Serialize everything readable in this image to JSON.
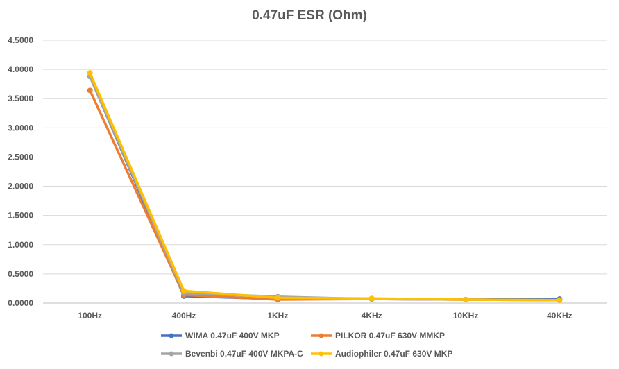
{
  "chart_data": {
    "type": "line",
    "title": "0.47uF ESR (Ohm)",
    "xlabel": "",
    "ylabel": "",
    "categories": [
      "100Hz",
      "400Hz",
      "1KHz",
      "4KHz",
      "10KHz",
      "40KHz"
    ],
    "ylim": [
      0,
      4.5
    ],
    "y_ticks": [
      "0.0000",
      "0.5000",
      "1.0000",
      "1.5000",
      "2.0000",
      "2.5000",
      "3.0000",
      "3.5000",
      "4.0000",
      "4.5000"
    ],
    "grid": true,
    "legend_position": "bottom",
    "series": [
      {
        "name": "WIMA 0.47uF 400V MKP",
        "color": "#4472C4",
        "values": [
          3.88,
          0.12,
          0.07,
          0.07,
          0.06,
          0.07
        ]
      },
      {
        "name": "PILKOR 0.47uF 630V MMKP",
        "color": "#ED7D31",
        "values": [
          3.64,
          0.14,
          0.06,
          0.07,
          0.06,
          0.05
        ]
      },
      {
        "name": "Bevenbi 0.47uF 400V MKPA-C",
        "color": "#A5A5A5",
        "values": [
          3.88,
          0.17,
          0.11,
          0.07,
          0.06,
          0.05
        ]
      },
      {
        "name": "Audiophiler 0.47uF 630V MKP",
        "color": "#FFC000",
        "values": [
          3.94,
          0.21,
          0.09,
          0.08,
          0.06,
          0.05
        ]
      }
    ]
  }
}
